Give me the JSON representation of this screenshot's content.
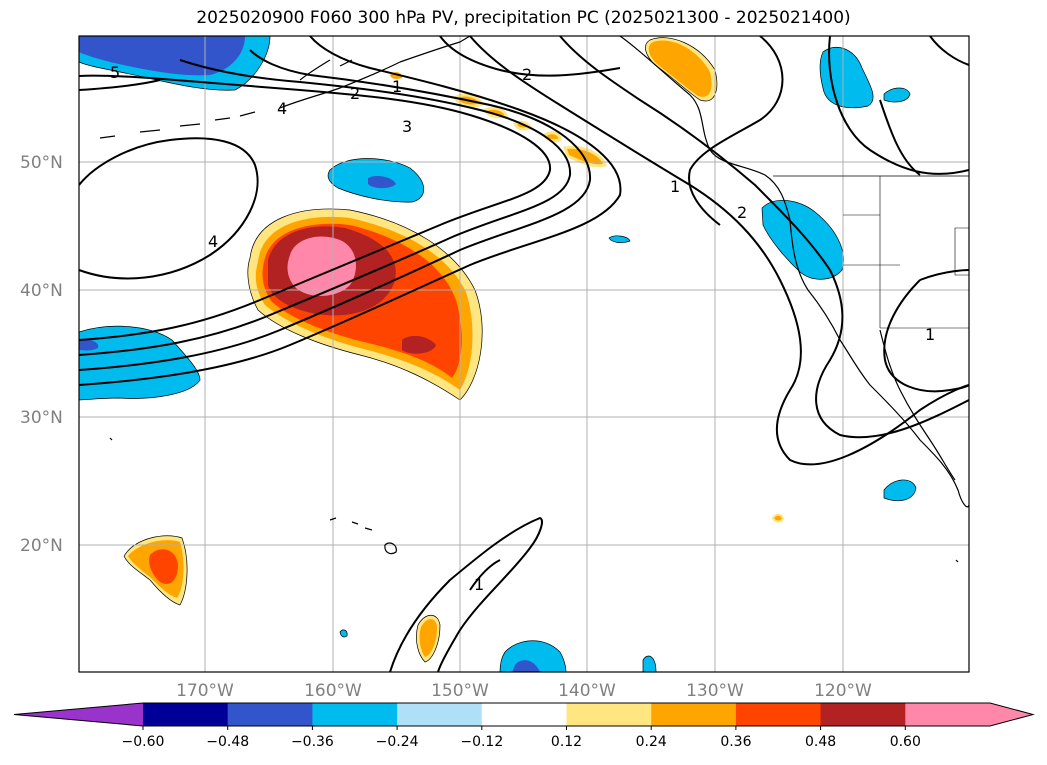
{
  "title": "2025020900 F060 300 hPa PV, precipitation PC (2025021300 - 2025021400)",
  "map": {
    "lat_labels": [
      "50°N",
      "40°N",
      "30°N",
      "20°N"
    ],
    "lon_labels": [
      "170°W",
      "160°W",
      "150°W",
      "140°W",
      "130°W",
      "120°W"
    ],
    "pv_contour_labels": [
      "5",
      "4",
      "3",
      "2",
      "1",
      "2",
      "4",
      "2",
      "1",
      "1",
      "1"
    ]
  },
  "colorbar": {
    "tick_labels": [
      "−0.60",
      "−0.48",
      "−0.36",
      "−0.24",
      "−0.12",
      "0.12",
      "0.24",
      "0.36",
      "0.48",
      "0.60"
    ],
    "colors": [
      "#9933cc",
      "#000099",
      "#3355cc",
      "#00bbee",
      "#b0e0f8",
      "#ffffff",
      "#ffe680",
      "#ffa500",
      "#ff4400",
      "#b22222",
      "#ff88aa",
      "#ff88aa"
    ]
  }
}
